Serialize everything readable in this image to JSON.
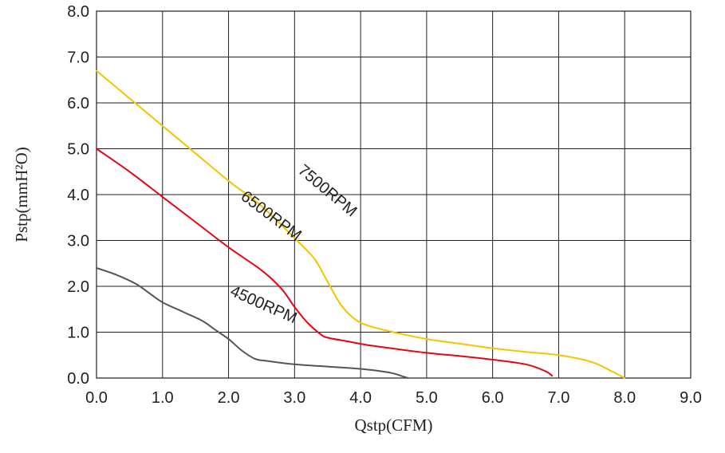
{
  "chart_data": {
    "type": "line",
    "xlabel": "Qstp(CFM)",
    "ylabel": "Pstp(mmH²O)",
    "xlim": [
      0,
      9
    ],
    "ylim": [
      0,
      8
    ],
    "x_ticks": [
      "0.0",
      "1.0",
      "2.0",
      "3.0",
      "4.0",
      "5.0",
      "6.0",
      "7.0",
      "8.0",
      "9.0"
    ],
    "y_ticks": [
      "0.0",
      "1.0",
      "2.0",
      "3.0",
      "4.0",
      "5.0",
      "6.0",
      "7.0",
      "8.0"
    ],
    "grid": true,
    "series": [
      {
        "name": "7500RPM",
        "color": "#f5c400",
        "points": [
          [
            0.0,
            6.7
          ],
          [
            0.5,
            6.1
          ],
          [
            1.0,
            5.5
          ],
          [
            1.5,
            4.9
          ],
          [
            2.0,
            4.3
          ],
          [
            2.5,
            3.75
          ],
          [
            3.0,
            3.05
          ],
          [
            3.3,
            2.6
          ],
          [
            3.5,
            2.1
          ],
          [
            3.7,
            1.6
          ],
          [
            3.9,
            1.3
          ],
          [
            4.1,
            1.15
          ],
          [
            4.5,
            1.0
          ],
          [
            5.0,
            0.85
          ],
          [
            5.5,
            0.75
          ],
          [
            6.0,
            0.65
          ],
          [
            6.5,
            0.57
          ],
          [
            7.0,
            0.5
          ],
          [
            7.5,
            0.35
          ],
          [
            7.8,
            0.15
          ],
          [
            8.0,
            0.0
          ]
        ]
      },
      {
        "name": "6500RPM",
        "color": "#e30613",
        "points": [
          [
            0.0,
            5.0
          ],
          [
            0.5,
            4.5
          ],
          [
            1.0,
            3.95
          ],
          [
            1.5,
            3.4
          ],
          [
            2.0,
            2.85
          ],
          [
            2.5,
            2.35
          ],
          [
            2.8,
            1.95
          ],
          [
            3.0,
            1.55
          ],
          [
            3.2,
            1.2
          ],
          [
            3.4,
            0.95
          ],
          [
            3.5,
            0.88
          ],
          [
            3.8,
            0.8
          ],
          [
            4.2,
            0.7
          ],
          [
            5.0,
            0.55
          ],
          [
            5.5,
            0.48
          ],
          [
            6.0,
            0.4
          ],
          [
            6.5,
            0.3
          ],
          [
            6.8,
            0.15
          ],
          [
            6.9,
            0.05
          ]
        ]
      },
      {
        "name": "4500RPM",
        "color": "#555555",
        "points": [
          [
            0.0,
            2.4
          ],
          [
            0.3,
            2.25
          ],
          [
            0.6,
            2.05
          ],
          [
            0.8,
            1.85
          ],
          [
            1.0,
            1.65
          ],
          [
            1.3,
            1.45
          ],
          [
            1.6,
            1.25
          ],
          [
            1.8,
            1.05
          ],
          [
            2.0,
            0.85
          ],
          [
            2.2,
            0.6
          ],
          [
            2.4,
            0.42
          ],
          [
            2.6,
            0.37
          ],
          [
            3.0,
            0.3
          ],
          [
            3.5,
            0.25
          ],
          [
            4.0,
            0.2
          ],
          [
            4.3,
            0.15
          ],
          [
            4.5,
            0.1
          ],
          [
            4.65,
            0.03
          ],
          [
            4.72,
            0.0
          ]
        ]
      }
    ],
    "series_labels": [
      {
        "text": "7500RPM",
        "x": 3.45,
        "y": 4.0,
        "angle": 40
      },
      {
        "text": "6500RPM",
        "x": 2.6,
        "y": 3.45,
        "angle": 37
      },
      {
        "text": "4500RPM",
        "x": 2.5,
        "y": 1.5,
        "angle": 24
      }
    ]
  }
}
